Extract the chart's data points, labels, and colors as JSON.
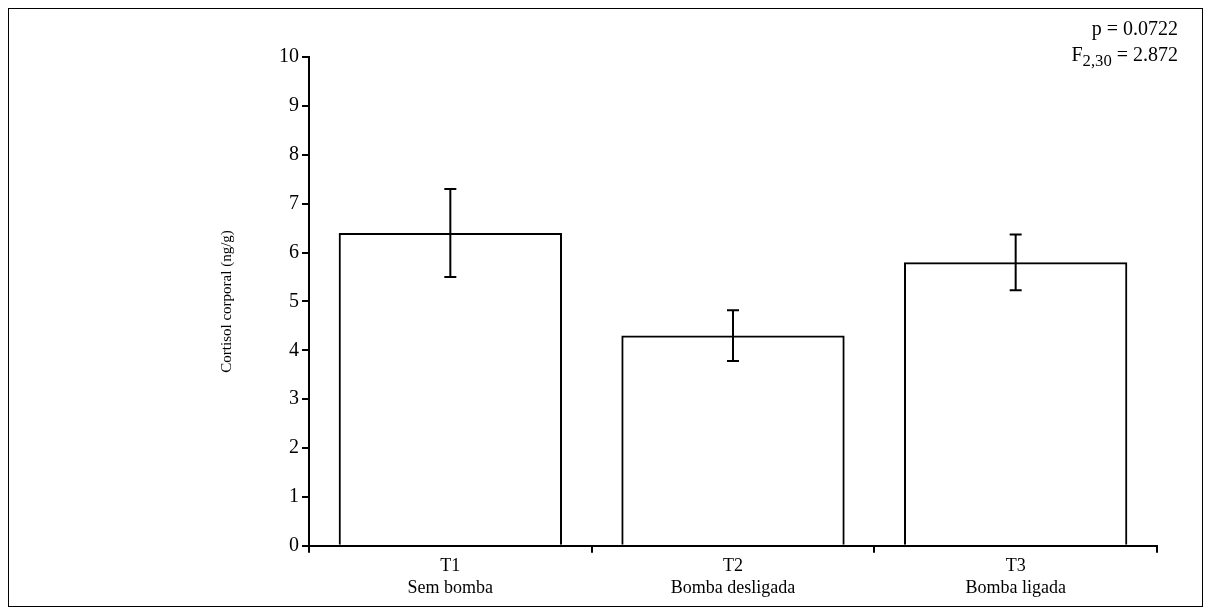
{
  "chart_data": {
    "type": "bar",
    "ylabel": "Cortisol corporal (ng/g)",
    "categories": [
      "T1\nSem bomba",
      "T2\nBomba desligada",
      "T3\nBomba ligada"
    ],
    "values": [
      6.4,
      4.3,
      5.8
    ],
    "errors": [
      0.9,
      0.52,
      0.57
    ],
    "color": "#000000",
    "ylim": [
      0,
      10
    ],
    "yticks": [
      0,
      1,
      2,
      3,
      4,
      5,
      6,
      7,
      8,
      9,
      10
    ],
    "grid": false,
    "legend": false,
    "annotations": [
      "p = 0.0722",
      "F$_{2,30}$ = 2.872"
    ]
  }
}
